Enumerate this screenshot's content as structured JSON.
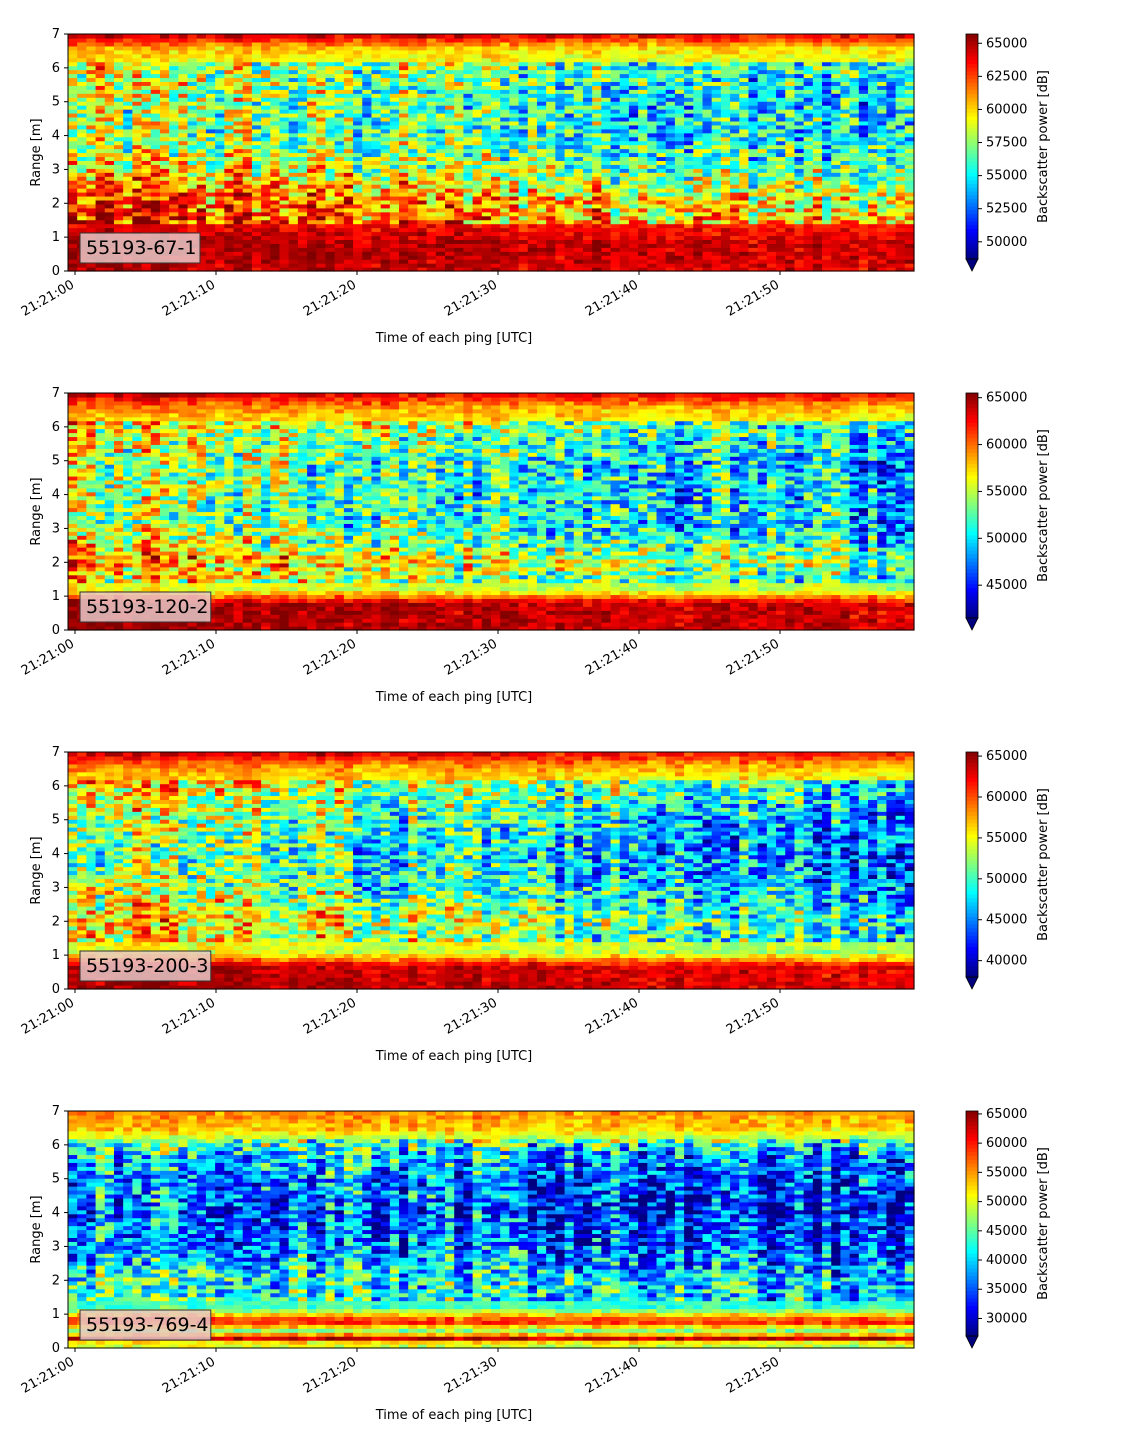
{
  "chart_data": [
    {
      "type": "heatmap",
      "label": "55193-67-1",
      "xlabel": "Time of each ping [UTC]",
      "ylabel": "Range [m]",
      "x_tick_labels": [
        "21:21:00",
        "21:21:10",
        "21:21:20",
        "21:21:30",
        "21:21:40",
        "21:21:50"
      ],
      "x_range_seconds": [
        0,
        60
      ],
      "y_ticks": [
        0,
        1,
        2,
        3,
        4,
        5,
        6,
        7
      ],
      "ylim": [
        0,
        7
      ],
      "colorbar": {
        "label": "Backscatter power [dB]",
        "ticks": [
          50000,
          52500,
          55000,
          57500,
          60000,
          62500,
          65000
        ],
        "tick_labels": [
          "50000",
          "52500",
          "55000",
          "57500",
          "60000",
          "62500",
          "65000"
        ],
        "range": [
          48700,
          65700
        ],
        "extend": "min",
        "colormap": "jet"
      },
      "profile": [
        {
          "range": 0.2,
          "level": 0.95
        },
        {
          "range": 0.8,
          "level": 0.98
        },
        {
          "range": 1.6,
          "level": 0.85
        },
        {
          "range": 2.2,
          "level": 0.8
        },
        {
          "range": 3.0,
          "level": 0.65
        },
        {
          "range": 4.0,
          "level": 0.55
        },
        {
          "range": 5.0,
          "level": 0.55
        },
        {
          "range": 6.0,
          "level": 0.6
        },
        {
          "range": 6.6,
          "level": 0.7
        },
        {
          "range": 7.0,
          "level": 0.95
        }
      ],
      "time_trend": -0.22
    },
    {
      "type": "heatmap",
      "label": "55193-120-2",
      "xlabel": "Time of each ping [UTC]",
      "ylabel": "Range [m]",
      "x_tick_labels": [
        "21:21:00",
        "21:21:10",
        "21:21:20",
        "21:21:30",
        "21:21:40",
        "21:21:50"
      ],
      "x_range_seconds": [
        0,
        60
      ],
      "y_ticks": [
        0,
        1,
        2,
        3,
        4,
        5,
        6,
        7
      ],
      "ylim": [
        0,
        7
      ],
      "colorbar": {
        "label": "Backscatter power [dB]",
        "ticks": [
          45000,
          50000,
          55000,
          60000,
          65000
        ],
        "tick_labels": [
          "45000",
          "50000",
          "55000",
          "60000",
          "65000"
        ],
        "range": [
          41500,
          65500
        ],
        "extend": "min",
        "colormap": "jet"
      },
      "profile": [
        {
          "range": 0.2,
          "level": 0.98
        },
        {
          "range": 0.8,
          "level": 0.98
        },
        {
          "range": 1.2,
          "level": 0.6
        },
        {
          "range": 2.0,
          "level": 0.75
        },
        {
          "range": 3.0,
          "level": 0.55
        },
        {
          "range": 4.0,
          "level": 0.55
        },
        {
          "range": 5.0,
          "level": 0.55
        },
        {
          "range": 6.0,
          "level": 0.65
        },
        {
          "range": 6.6,
          "level": 0.75
        },
        {
          "range": 7.0,
          "level": 0.95
        }
      ],
      "time_trend": -0.25
    },
    {
      "type": "heatmap",
      "label": "55193-200-3",
      "xlabel": "Time of each ping [UTC]",
      "ylabel": "Range [m]",
      "x_tick_labels": [
        "21:21:00",
        "21:21:10",
        "21:21:20",
        "21:21:30",
        "21:21:40",
        "21:21:50"
      ],
      "x_range_seconds": [
        0,
        60
      ],
      "y_ticks": [
        0,
        1,
        2,
        3,
        4,
        5,
        6,
        7
      ],
      "ylim": [
        0,
        7
      ],
      "colorbar": {
        "label": "Backscatter power [dB]",
        "ticks": [
          40000,
          45000,
          50000,
          55000,
          60000,
          65000
        ],
        "tick_labels": [
          "40000",
          "45000",
          "50000",
          "55000",
          "60000",
          "65000"
        ],
        "range": [
          38000,
          65500
        ],
        "extend": "min",
        "colormap": "jet"
      },
      "profile": [
        {
          "range": 0.2,
          "level": 0.97
        },
        {
          "range": 0.7,
          "level": 0.95
        },
        {
          "range": 1.1,
          "level": 0.6
        },
        {
          "range": 2.0,
          "level": 0.7
        },
        {
          "range": 3.0,
          "level": 0.55
        },
        {
          "range": 4.0,
          "level": 0.5
        },
        {
          "range": 5.0,
          "level": 0.55
        },
        {
          "range": 6.0,
          "level": 0.65
        },
        {
          "range": 6.6,
          "level": 0.75
        },
        {
          "range": 7.0,
          "level": 0.95
        }
      ],
      "time_trend": -0.28
    },
    {
      "type": "heatmap",
      "label": "55193-769-4",
      "xlabel": "Time of each ping [UTC]",
      "ylabel": "Range [m]",
      "x_tick_labels": [
        "21:21:00",
        "21:21:10",
        "21:21:20",
        "21:21:30",
        "21:21:40",
        "21:21:50"
      ],
      "x_range_seconds": [
        0,
        60
      ],
      "y_ticks": [
        0,
        1,
        2,
        3,
        4,
        5,
        6,
        7
      ],
      "ylim": [
        0,
        7
      ],
      "colorbar": {
        "label": "Backscatter power [dB]",
        "ticks": [
          30000,
          35000,
          40000,
          45000,
          50000,
          55000,
          60000,
          65000
        ],
        "tick_labels": [
          "30000",
          "35000",
          "40000",
          "45000",
          "50000",
          "55000",
          "60000",
          "65000"
        ],
        "range": [
          27000,
          65500
        ],
        "extend": "min",
        "colormap": "jet"
      },
      "profile": [
        {
          "range": 0.15,
          "level": 0.6
        },
        {
          "range": 0.3,
          "level": 0.98
        },
        {
          "range": 0.5,
          "level": 0.5
        },
        {
          "range": 0.8,
          "level": 0.9
        },
        {
          "range": 1.2,
          "level": 0.45
        },
        {
          "range": 2.0,
          "level": 0.45
        },
        {
          "range": 3.0,
          "level": 0.3
        },
        {
          "range": 4.0,
          "level": 0.25
        },
        {
          "range": 5.0,
          "level": 0.3
        },
        {
          "range": 5.8,
          "level": 0.4
        },
        {
          "range": 6.5,
          "level": 0.7
        },
        {
          "range": 7.0,
          "level": 0.75
        }
      ],
      "time_trend": -0.15
    }
  ]
}
